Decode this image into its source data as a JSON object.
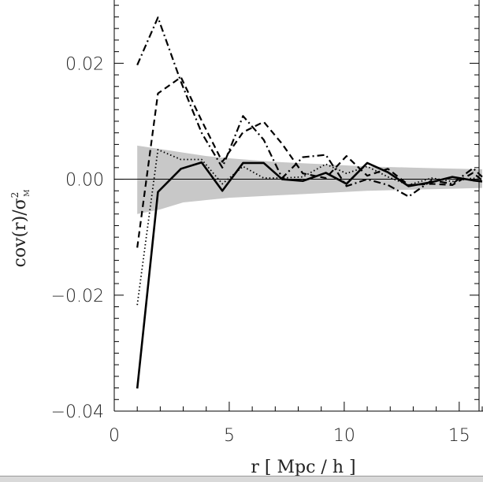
{
  "chart_data": {
    "type": "line",
    "title": "",
    "xlabel": "r [ Mpc / h ]",
    "ylabel_main": "cov(r)/σ",
    "ylabel_sup": "2",
    "ylabel_sub": "M",
    "xlim": [
      0,
      16
    ],
    "ylim": [
      -0.04,
      0.032
    ],
    "xticks": [
      0,
      5,
      10,
      15
    ],
    "xtick_labels": [
      "0",
      "5",
      "10",
      "15"
    ],
    "yticks": [
      -0.04,
      -0.02,
      0.0,
      0.02
    ],
    "ytick_labels": [
      "−0.04",
      "−0.02",
      "0.00",
      "0.02"
    ],
    "grid": false,
    "band": {
      "x": [
        1,
        2,
        3,
        4,
        5,
        6,
        7,
        8,
        9,
        10,
        11,
        12,
        13,
        14,
        15,
        16
      ],
      "upper": [
        0.0058,
        0.0052,
        0.0046,
        0.004,
        0.0036,
        0.0033,
        0.003,
        0.0028,
        0.0026,
        0.0024,
        0.0022,
        0.0021,
        0.002,
        0.0019,
        0.0018,
        0.0017
      ],
      "lower": [
        -0.006,
        -0.0052,
        -0.004,
        -0.0036,
        -0.0032,
        -0.003,
        -0.0028,
        -0.0026,
        -0.0024,
        -0.0022,
        -0.002,
        -0.0019,
        -0.0018,
        -0.0017,
        -0.0016,
        -0.0015
      ],
      "color": "#c8c8c8"
    },
    "series": [
      {
        "style": "solid",
        "x": [
          1.0,
          1.9,
          2.9,
          3.8,
          4.7,
          5.6,
          6.5,
          7.3,
          8.2,
          9.2,
          10.1,
          11.0,
          11.9,
          12.8,
          13.8,
          14.7,
          15.6,
          16.0
        ],
        "y": [
          -0.0361,
          -0.0022,
          0.0018,
          0.0029,
          -0.002,
          0.0028,
          0.0028,
          0.0,
          -0.0003,
          0.0011,
          -0.0008,
          0.0028,
          0.0012,
          -0.0012,
          -0.0005,
          0.0004,
          -0.0002,
          -0.0004
        ]
      },
      {
        "style": "dotted",
        "x": [
          1.0,
          1.9,
          2.9,
          3.8,
          4.7,
          5.6,
          6.5,
          7.3,
          8.2,
          9.2,
          10.1,
          11.0,
          11.9,
          12.8,
          13.8,
          14.7,
          15.6,
          16.0
        ],
        "y": [
          -0.0217,
          0.0051,
          0.0034,
          0.0034,
          -0.0008,
          0.0022,
          0.0002,
          0.0002,
          0.0004,
          0.0026,
          0.001,
          0.0022,
          0.0004,
          -0.001,
          0.0002,
          -0.0004,
          0.0002,
          -0.0002
        ]
      },
      {
        "style": "dashed",
        "x": [
          1.0,
          1.9,
          2.9,
          3.8,
          4.7,
          5.6,
          6.5,
          7.3,
          8.2,
          9.2,
          10.1,
          11.0,
          11.9,
          12.8,
          13.8,
          14.7,
          15.6,
          16.0
        ],
        "y": [
          -0.0118,
          0.0148,
          0.0176,
          0.0101,
          0.003,
          0.0081,
          0.0099,
          0.0061,
          0.001,
          0.0002,
          0.004,
          0.0006,
          0.0018,
          -0.001,
          -0.0008,
          -0.001,
          0.0011,
          -0.0002
        ]
      },
      {
        "style": "dashdot",
        "x": [
          1.0,
          1.9,
          2.9,
          3.8,
          4.7,
          5.6,
          6.5,
          7.3,
          8.2,
          9.2,
          10.1,
          11.0,
          11.9,
          12.8,
          13.8,
          14.7,
          15.6,
          16.0
        ],
        "y": [
          0.0197,
          0.0279,
          0.0168,
          0.008,
          0.002,
          0.0109,
          0.0068,
          0.0002,
          0.0038,
          0.0042,
          -0.0012,
          0.0,
          -0.001,
          -0.003,
          -0.0002,
          -0.0008,
          0.0019,
          0.0004
        ]
      }
    ]
  }
}
